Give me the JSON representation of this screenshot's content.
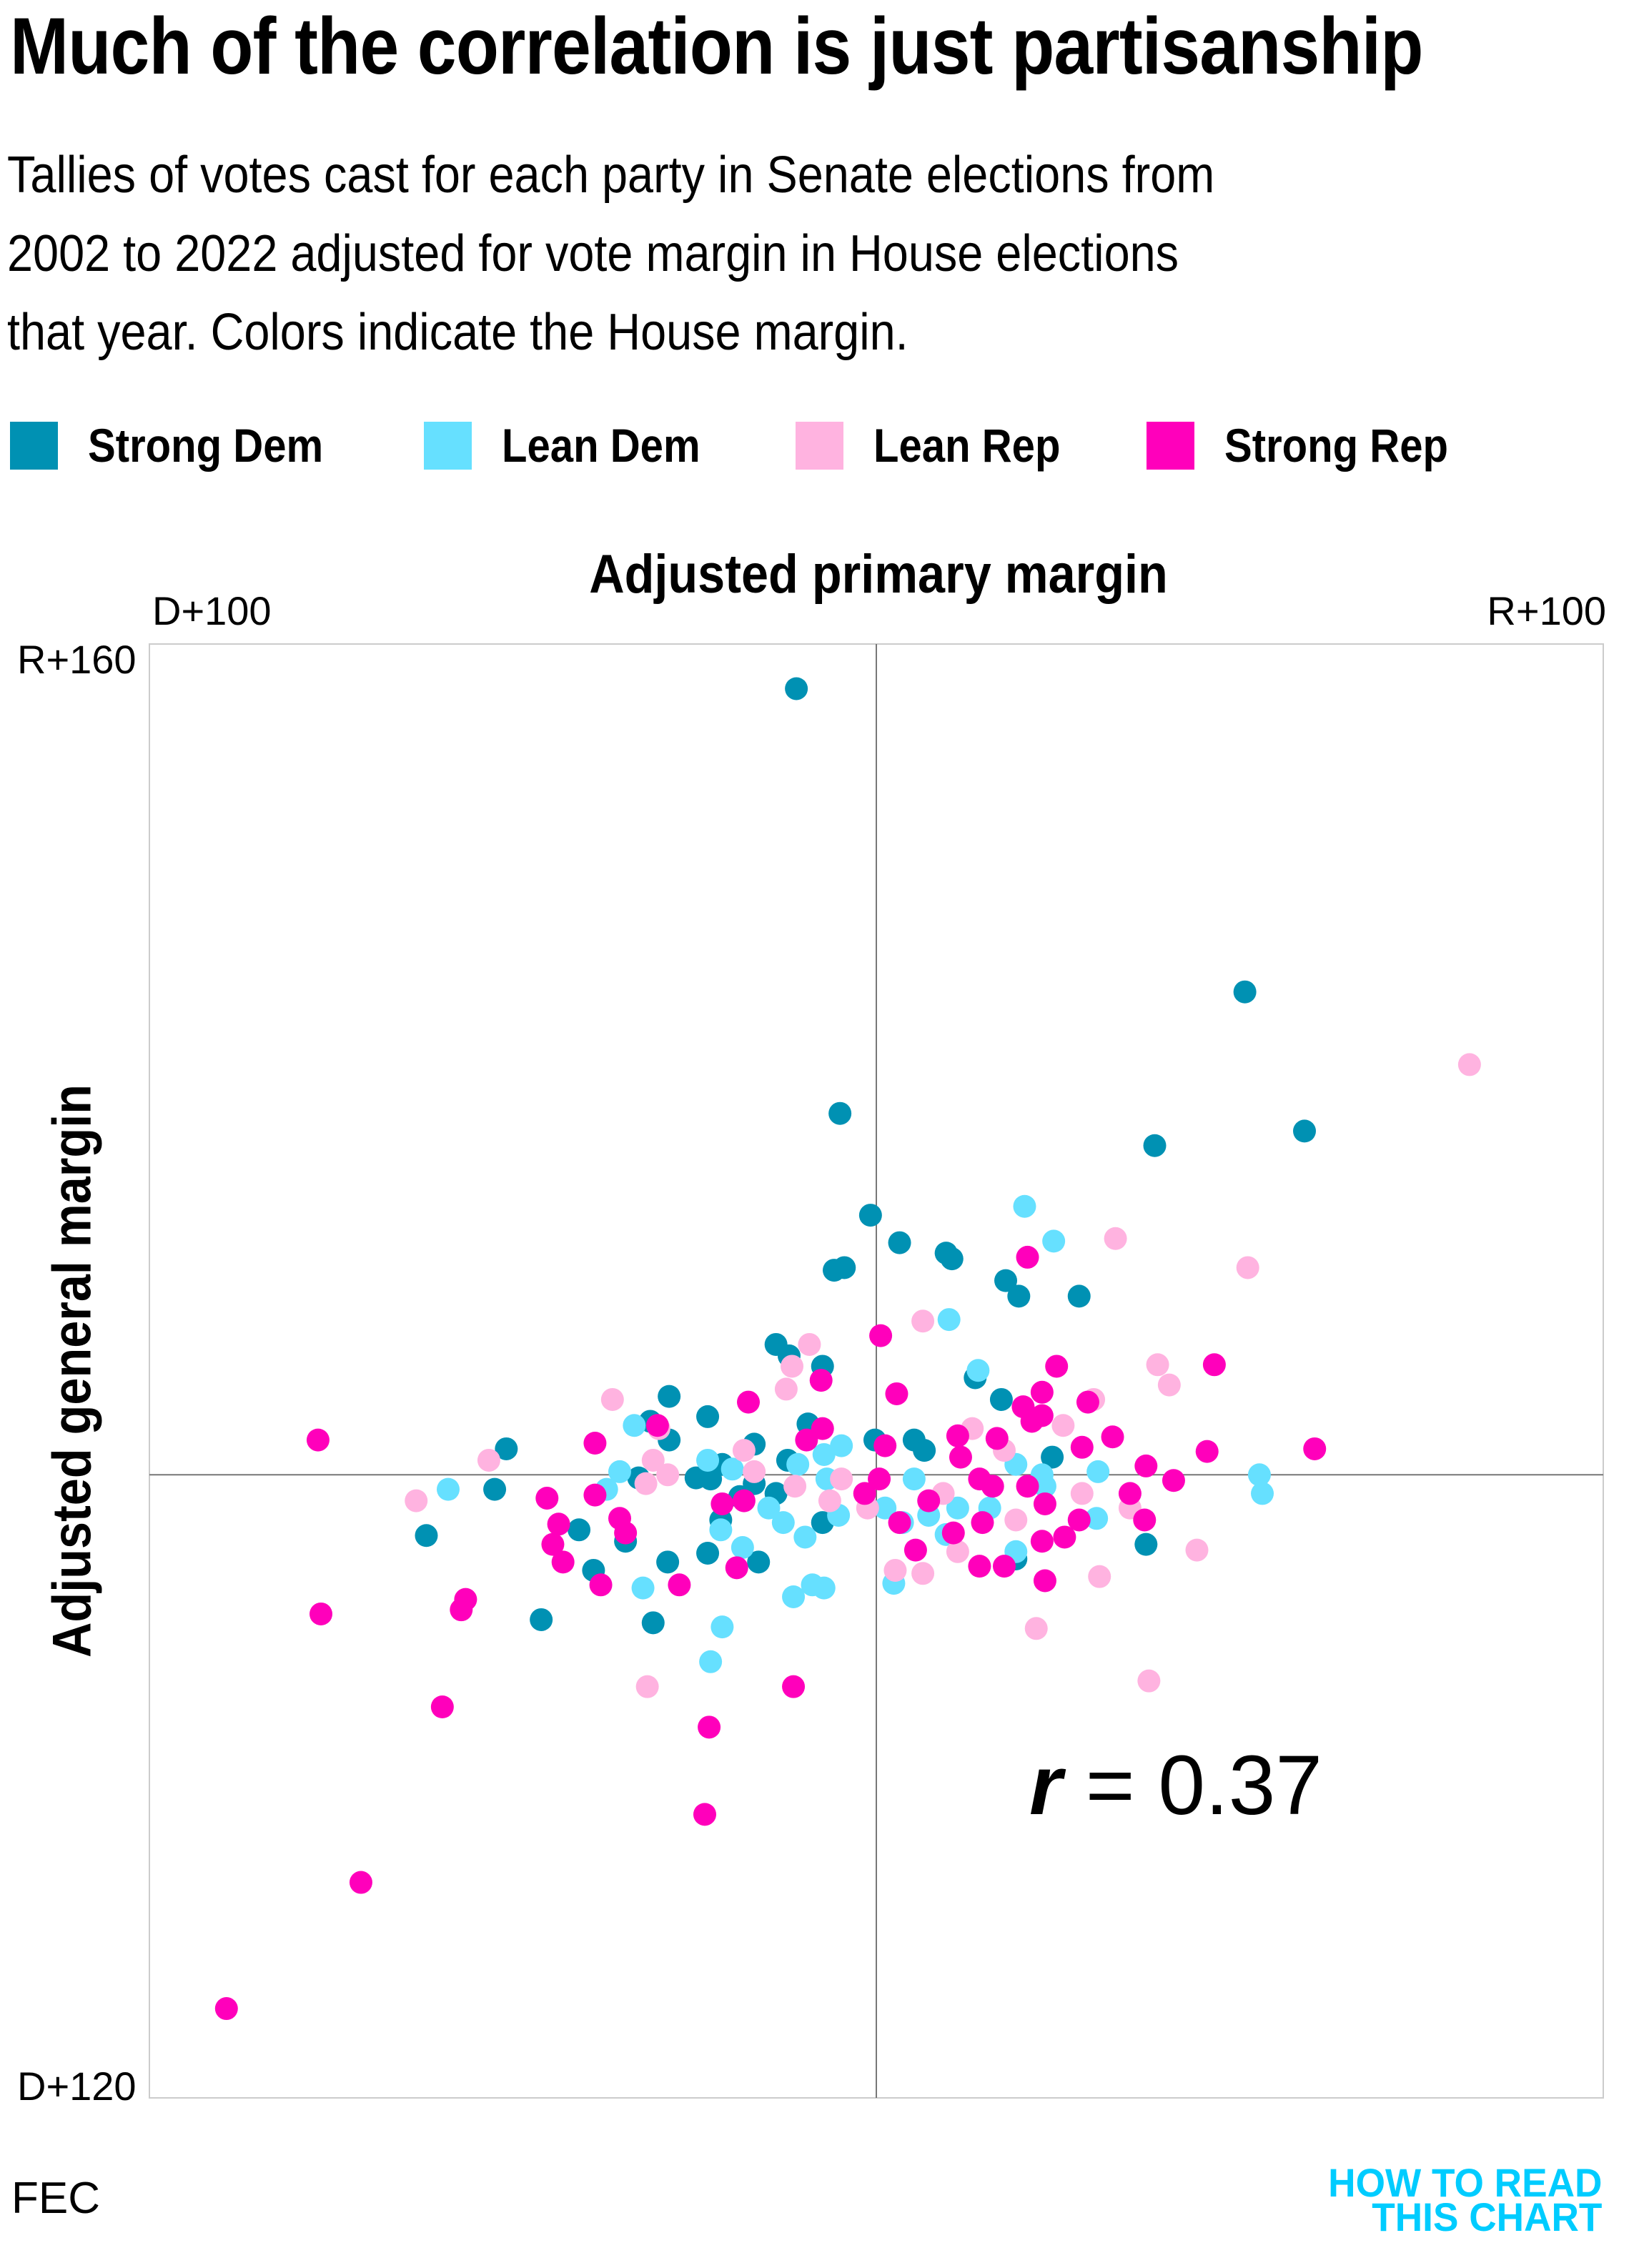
{
  "title": "Much of the correlation is just partisanship",
  "subtitle_lines": [
    "Tallies of votes cast for each party in Senate elections from",
    "2002 to 2022 adjusted for vote margin in House elections",
    "that year. Colors indicate the House margin."
  ],
  "source": "FEC",
  "logo": [
    "HOW TO READ",
    "THIS CHART"
  ],
  "colors": {
    "strong_dem": "#0091B3",
    "lean_dem": "#66E0FF",
    "lean_rep": "#FFB3E0",
    "strong_rep": "#FF00BB",
    "logo": "#00CCFF",
    "axis": "#777777",
    "frame": "#CCCCCC"
  },
  "chart_data": {
    "type": "scatter",
    "title": "Much of the correlation is just partisanship",
    "xlabel": "Adjusted primary margin",
    "ylabel": "Adjusted general margin",
    "xlim": [
      -100,
      100
    ],
    "ylim": [
      -120,
      160
    ],
    "x_tick_labels": {
      "min": "D+100",
      "max": "R+100"
    },
    "y_tick_labels": {
      "min": "D+120",
      "max": "R+160"
    },
    "grid": false,
    "zero_lines": true,
    "legend_placement": "top",
    "annotation": {
      "prefix": "r",
      "text": " = 0.37"
    },
    "series": [
      {
        "name": "Strong Dem",
        "color": "#0091B3",
        "points": [
          [
            -11,
            151.4
          ],
          [
            50.7,
            93
          ],
          [
            -5,
            69.6
          ],
          [
            58.9,
            66.2
          ],
          [
            38.3,
            63.4
          ],
          [
            -0.8,
            50
          ],
          [
            3.2,
            44.7
          ],
          [
            9.6,
            42.7
          ],
          [
            10.4,
            41.6
          ],
          [
            -5.8,
            39.4
          ],
          [
            -4.4,
            39.9
          ],
          [
            17.8,
            37.4
          ],
          [
            19.6,
            34.4
          ],
          [
            27.9,
            34.4
          ],
          [
            -13.8,
            25.1
          ],
          [
            -12,
            22.9
          ],
          [
            -7.4,
            20.9
          ],
          [
            13.6,
            18.7
          ],
          [
            17.2,
            14.5
          ],
          [
            -28.5,
            15.1
          ],
          [
            -23.2,
            11.2
          ],
          [
            -9.4,
            9.8
          ],
          [
            -31.1,
            10.3
          ],
          [
            -28.5,
            6.7
          ],
          [
            -50.9,
            5
          ],
          [
            -16.8,
            5.9
          ],
          [
            -0.2,
            6.7
          ],
          [
            5.2,
            6.7
          ],
          [
            6.6,
            4.7
          ],
          [
            -12.2,
            2.8
          ],
          [
            -21.2,
            2
          ],
          [
            -24.8,
            -0.6
          ],
          [
            -22.8,
            -0.8
          ],
          [
            -16.8,
            -1.7
          ],
          [
            -18.8,
            -4.2
          ],
          [
            -21.4,
            -8.7
          ],
          [
            -32.7,
            -0.6
          ],
          [
            -52.5,
            -2.8
          ],
          [
            -61.9,
            -11.7
          ],
          [
            -40.9,
            -10.6
          ],
          [
            -34.5,
            -12.8
          ],
          [
            -38.9,
            -18.4
          ],
          [
            -28.7,
            -16.8
          ],
          [
            -23.2,
            -15.1
          ],
          [
            -16.2,
            -16.8
          ],
          [
            -46.1,
            -27.9
          ],
          [
            -30.7,
            -28.5
          ],
          [
            -7.4,
            -9.2
          ],
          [
            37.1,
            -13.4
          ],
          [
            19.2,
            -16.2
          ],
          [
            24.2,
            3.4
          ],
          [
            -13.8,
            -3.6
          ]
        ]
      },
      {
        "name": "Lean Dem",
        "color": "#66E0FF",
        "points": [
          [
            20.4,
            51.7
          ],
          [
            24.4,
            45
          ],
          [
            10,
            29.9
          ],
          [
            14,
            20.1
          ],
          [
            -7.2,
            3.9
          ],
          [
            -58.9,
            -2.8
          ],
          [
            -37.1,
            -2.8
          ],
          [
            -35.3,
            0.6
          ],
          [
            -33.3,
            9.5
          ],
          [
            -23.2,
            2.8
          ],
          [
            -19.8,
            1.1
          ],
          [
            -14.8,
            -6.4
          ],
          [
            -12.8,
            -9.2
          ],
          [
            -9.8,
            -12
          ],
          [
            -5.2,
            -7.8
          ],
          [
            -6.8,
            -0.8
          ],
          [
            -21.4,
            -10.6
          ],
          [
            -18.4,
            -14
          ],
          [
            -32.1,
            -21.8
          ],
          [
            -21.2,
            -29.3
          ],
          [
            -22.8,
            -36
          ],
          [
            -11.4,
            -23.5
          ],
          [
            -7.2,
            -21.8
          ],
          [
            -8.8,
            -21.2
          ],
          [
            2.4,
            -20.9
          ],
          [
            1.2,
            -6.4
          ],
          [
            3.6,
            -9.2
          ],
          [
            7.2,
            -7.8
          ],
          [
            9.6,
            -11.5
          ],
          [
            11.2,
            -6.4
          ],
          [
            19.2,
            2
          ],
          [
            22.8,
            0
          ],
          [
            23.2,
            -2.2
          ],
          [
            30.5,
            0.6
          ],
          [
            30.3,
            -8.4
          ],
          [
            52.7,
            0
          ],
          [
            53.1,
            -3.6
          ],
          [
            19.2,
            -14.8
          ],
          [
            15.6,
            -6.4
          ],
          [
            5.2,
            -0.8
          ],
          [
            -4.8,
            5.6
          ],
          [
            -10.8,
            2
          ]
        ]
      },
      {
        "name": "Lean Rep",
        "color": "#FFB3E0",
        "points": [
          [
            81.6,
            79
          ],
          [
            51.1,
            39.9
          ],
          [
            32.9,
            45.5
          ],
          [
            6.4,
            29.6
          ],
          [
            -9.2,
            25.1
          ],
          [
            -11.6,
            20.9
          ],
          [
            -12.4,
            16.5
          ],
          [
            38.7,
            21.2
          ],
          [
            40.3,
            17.3
          ],
          [
            29.9,
            14.5
          ],
          [
            -36.3,
            14.5
          ],
          [
            -29.9,
            8.9
          ],
          [
            -30.7,
            2.8
          ],
          [
            -31.7,
            -1.7
          ],
          [
            -53.3,
            2.8
          ],
          [
            -63.3,
            -5
          ],
          [
            -31.5,
            -40.8
          ],
          [
            22,
            -29.6
          ],
          [
            37.5,
            -39.7
          ],
          [
            30.7,
            -19.6
          ],
          [
            44.1,
            -14.5
          ],
          [
            34.9,
            -6.4
          ],
          [
            28.3,
            -3.6
          ],
          [
            25.7,
            9.5
          ],
          [
            17.6,
            4.7
          ],
          [
            13.2,
            8.9
          ],
          [
            2.6,
            -18.4
          ],
          [
            6.4,
            -19
          ],
          [
            9.2,
            -3.6
          ],
          [
            11.2,
            -14.8
          ],
          [
            19.2,
            -8.7
          ],
          [
            -4.8,
            -0.8
          ],
          [
            -11.2,
            -2.2
          ],
          [
            -16.8,
            0.6
          ],
          [
            -18.2,
            4.7
          ],
          [
            -6.4,
            -5
          ],
          [
            -1.2,
            -6.4
          ],
          [
            -28.7,
            0
          ]
        ]
      },
      {
        "name": "Strong Rep",
        "color": "#FF00BB",
        "points": [
          [
            -76.8,
            6.7
          ],
          [
            -76.4,
            -26.8
          ],
          [
            -89.4,
            -102.8
          ],
          [
            -70.9,
            -78.5
          ],
          [
            -59.7,
            -44.7
          ],
          [
            -57.1,
            -26
          ],
          [
            -56.5,
            -24
          ],
          [
            -45.3,
            -4.5
          ],
          [
            -43.7,
            -9.5
          ],
          [
            -44.5,
            -13.4
          ],
          [
            -43.1,
            -16.8
          ],
          [
            -37.9,
            -21.2
          ],
          [
            -38.7,
            6.1
          ],
          [
            -38.7,
            -3.9
          ],
          [
            -35.3,
            -8.4
          ],
          [
            -34.5,
            -11.2
          ],
          [
            -30.1,
            9.5
          ],
          [
            -17.6,
            14
          ],
          [
            -18.2,
            -5
          ],
          [
            -21.2,
            -5.6
          ],
          [
            -19.2,
            -17.9
          ],
          [
            -27.1,
            -21.2
          ],
          [
            -23,
            -48.6
          ],
          [
            -23.6,
            -65.4
          ],
          [
            -11.4,
            -40.8
          ],
          [
            -7.6,
            18.2
          ],
          [
            -7.4,
            8.9
          ],
          [
            -9.6,
            6.7
          ],
          [
            0.6,
            26.8
          ],
          [
            2.8,
            15.6
          ],
          [
            1.2,
            5.6
          ],
          [
            0.4,
            -0.8
          ],
          [
            -1.6,
            -3.6
          ],
          [
            5.4,
            -14.5
          ],
          [
            11.2,
            7.5
          ],
          [
            11.6,
            3.4
          ],
          [
            14.2,
            -0.8
          ],
          [
            16.6,
            7
          ],
          [
            20.2,
            13.1
          ],
          [
            21.4,
            10.3
          ],
          [
            22.8,
            15.9
          ],
          [
            22.8,
            11.4
          ],
          [
            24.8,
            20.9
          ],
          [
            29.1,
            14
          ],
          [
            28.3,
            5.3
          ],
          [
            20.8,
            41.9
          ],
          [
            32.5,
            7.3
          ],
          [
            37.1,
            1.7
          ],
          [
            40.9,
            -1.1
          ],
          [
            34.9,
            -3.6
          ],
          [
            36.9,
            -8.7
          ],
          [
            27.9,
            -8.7
          ],
          [
            25.9,
            -12
          ],
          [
            23.2,
            -5.6
          ],
          [
            22.8,
            -12.8
          ],
          [
            23.2,
            -20.4
          ],
          [
            17.6,
            -17.6
          ],
          [
            14.2,
            -17.6
          ],
          [
            10.6,
            -11.2
          ],
          [
            14.6,
            -9.2
          ],
          [
            7.2,
            -5
          ],
          [
            16,
            -2.2
          ],
          [
            20.8,
            -2.2
          ],
          [
            46.5,
            21.2
          ],
          [
            45.5,
            4.5
          ],
          [
            60.3,
            5
          ],
          [
            3.2,
            -9.2
          ]
        ]
      }
    ]
  }
}
